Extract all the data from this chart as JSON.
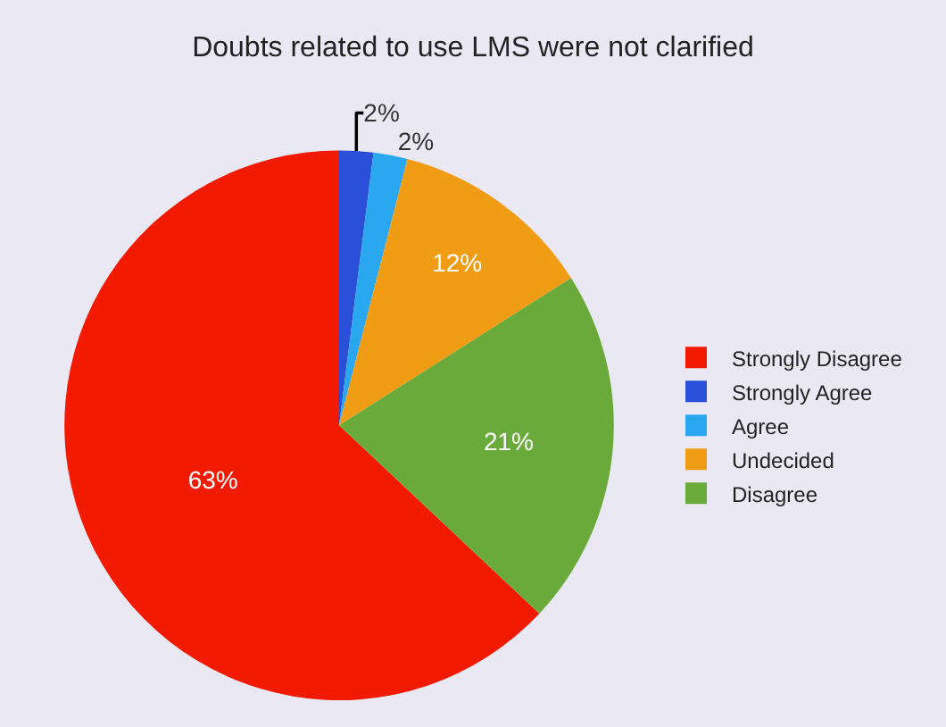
{
  "chart_data": {
    "type": "pie",
    "title": "Doubts related to use LMS were not clarified",
    "categories": [
      "Strongly Disagree",
      "Strongly Agree",
      "Agree",
      "Undecided",
      "Disagree"
    ],
    "values": [
      63,
      2,
      2,
      12,
      21
    ],
    "value_labels": [
      "63%",
      "2%",
      "2%",
      "12%",
      "21%"
    ],
    "colors": [
      "#f21a00",
      "#2a4fd9",
      "#29a8f0",
      "#f09c14",
      "#6aaa3a"
    ],
    "legend": "right"
  }
}
